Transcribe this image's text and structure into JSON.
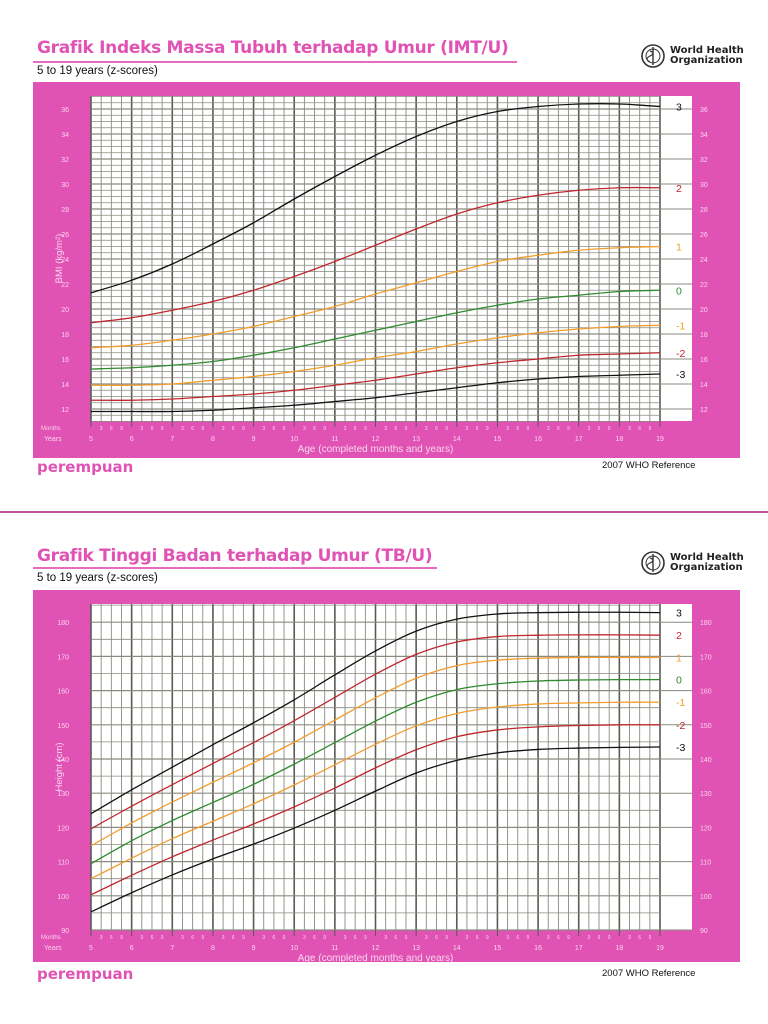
{
  "bmi_chart": {
    "title": "Grafik Indeks Massa Tubuh terhadap Umur (IMT/U)",
    "subtitle": "5 to 19 years (z-scores)",
    "logo_line1": "World Health",
    "logo_line2": "Organization",
    "gender_label": "perempuan",
    "reference": "2007 WHO Reference",
    "ylabel": "BMI (kg/m²)",
    "xlabel": "Age (completed months and years)",
    "months_label": "Months",
    "years_label": "Years"
  },
  "height_chart": {
    "title": "Grafik Tinggi Badan terhadap Umur (TB/U)",
    "subtitle": "5 to 19 years (z-scores)",
    "logo_line1": "World Health",
    "logo_line2": "Organization",
    "gender_label": "perempuan",
    "reference": "2007 WHO Reference",
    "ylabel": "Height (cm)",
    "xlabel": "Age (completed months and years)",
    "months_label": "Months",
    "years_label": "Years"
  },
  "colors": {
    "pink": "#e052b4",
    "z3": "#111111",
    "z2": "#c0272d",
    "z1": "#f39c2a",
    "z0": "#2e8b2e",
    "grid": "#8a8a80",
    "grid_major": "#5a5a52"
  },
  "chart_data": [
    {
      "type": "line",
      "title": "Grafik Indeks Massa Tubuh terhadap Umur (IMT/U)",
      "subtitle": "5 to 19 years (z-scores)",
      "xlabel": "Age (completed months and years)",
      "ylabel": "BMI (kg/m²)",
      "xlim": [
        5,
        19
      ],
      "ylim": [
        11,
        37
      ],
      "x_ticks": [
        5,
        6,
        7,
        8,
        9,
        10,
        11,
        12,
        13,
        14,
        15,
        16,
        17,
        18,
        19
      ],
      "month_ticks": [
        3,
        6,
        9
      ],
      "y_ticks": [
        12,
        14,
        16,
        18,
        20,
        22,
        24,
        26,
        28,
        30,
        32,
        34,
        36
      ],
      "grid": true,
      "legend_position": "right (z-score labels at line ends)",
      "x": [
        5,
        6,
        7,
        8,
        9,
        10,
        11,
        12,
        13,
        14,
        15,
        16,
        17,
        18,
        19
      ],
      "series": [
        {
          "name": "3",
          "color": "#111111",
          "values": [
            21.3,
            22.3,
            23.6,
            25.2,
            26.9,
            28.8,
            30.6,
            32.3,
            33.8,
            35.0,
            35.8,
            36.2,
            36.4,
            36.4,
            36.2
          ]
        },
        {
          "name": "2",
          "color": "#c0272d",
          "values": [
            18.9,
            19.3,
            19.9,
            20.6,
            21.5,
            22.6,
            23.8,
            25.1,
            26.4,
            27.6,
            28.5,
            29.1,
            29.5,
            29.7,
            29.7
          ]
        },
        {
          "name": "1",
          "color": "#f39c2a",
          "values": [
            16.9,
            17.1,
            17.5,
            18.0,
            18.6,
            19.4,
            20.2,
            21.2,
            22.1,
            23.0,
            23.8,
            24.3,
            24.7,
            24.9,
            25.0
          ]
        },
        {
          "name": "0",
          "color": "#2e8b2e",
          "values": [
            15.2,
            15.3,
            15.5,
            15.8,
            16.3,
            16.9,
            17.6,
            18.3,
            19.0,
            19.7,
            20.3,
            20.8,
            21.1,
            21.4,
            21.5
          ]
        },
        {
          "name": "-1",
          "color": "#f39c2a",
          "values": [
            13.9,
            13.9,
            14.0,
            14.3,
            14.6,
            15.0,
            15.5,
            16.1,
            16.6,
            17.2,
            17.7,
            18.1,
            18.4,
            18.6,
            18.7
          ]
        },
        {
          "name": "-2",
          "color": "#c0272d",
          "values": [
            12.7,
            12.7,
            12.8,
            13.0,
            13.2,
            13.5,
            13.9,
            14.3,
            14.8,
            15.3,
            15.7,
            16.0,
            16.3,
            16.4,
            16.5
          ]
        },
        {
          "name": "-3",
          "color": "#111111",
          "values": [
            11.8,
            11.8,
            11.8,
            11.9,
            12.1,
            12.3,
            12.6,
            12.9,
            13.3,
            13.7,
            14.1,
            14.4,
            14.6,
            14.7,
            14.8
          ]
        }
      ]
    },
    {
      "type": "line",
      "title": "Grafik Tinggi Badan terhadap Umur (TB/U)",
      "subtitle": "5 to 19 years (z-scores)",
      "xlabel": "Age (completed months and years)",
      "ylabel": "Height (cm)",
      "xlim": [
        5,
        19
      ],
      "ylim": [
        90,
        185
      ],
      "x_ticks": [
        5,
        6,
        7,
        8,
        9,
        10,
        11,
        12,
        13,
        14,
        15,
        16,
        17,
        18,
        19
      ],
      "month_ticks": [
        3,
        6,
        9
      ],
      "y_ticks": [
        90,
        100,
        110,
        120,
        130,
        140,
        150,
        160,
        170,
        180
      ],
      "grid": true,
      "legend_position": "right (z-score labels at line ends)",
      "x": [
        5,
        6,
        7,
        8,
        9,
        10,
        11,
        12,
        13,
        14,
        15,
        16,
        17,
        18,
        19
      ],
      "series": [
        {
          "name": "3",
          "color": "#111111",
          "values": [
            124.0,
            131.0,
            137.6,
            144.2,
            150.6,
            157.3,
            164.6,
            171.6,
            177.4,
            180.9,
            182.4,
            182.8,
            182.9,
            182.9,
            182.8
          ]
        },
        {
          "name": "2",
          "color": "#c0272d",
          "values": [
            119.6,
            126.2,
            132.5,
            138.7,
            144.8,
            151.2,
            158.0,
            164.8,
            170.6,
            174.2,
            175.8,
            176.2,
            176.3,
            176.3,
            176.2
          ]
        },
        {
          "name": "1",
          "color": "#f39c2a",
          "values": [
            114.6,
            121.3,
            127.4,
            133.2,
            138.9,
            144.9,
            151.4,
            157.9,
            163.6,
            167.3,
            168.9,
            169.5,
            169.7,
            169.7,
            169.7
          ]
        },
        {
          "name": "0",
          "color": "#2e8b2e",
          "values": [
            109.4,
            116.1,
            122.0,
            127.3,
            132.6,
            138.5,
            144.8,
            151.1,
            156.6,
            160.3,
            162.0,
            162.8,
            163.1,
            163.2,
            163.2
          ]
        },
        {
          "name": "-1",
          "color": "#f39c2a",
          "values": [
            105.0,
            111.0,
            116.7,
            121.8,
            126.9,
            132.4,
            138.3,
            144.3,
            149.7,
            153.3,
            155.2,
            156.1,
            156.4,
            156.6,
            156.6
          ]
        },
        {
          "name": "-2",
          "color": "#c0272d",
          "values": [
            100.3,
            106.0,
            111.4,
            116.3,
            121.0,
            126.0,
            131.5,
            137.4,
            142.7,
            146.5,
            148.5,
            149.4,
            149.8,
            150.0,
            150.0
          ]
        },
        {
          "name": "-3",
          "color": "#111111",
          "values": [
            95.3,
            100.9,
            106.1,
            110.8,
            115.1,
            119.8,
            125.0,
            130.6,
            135.9,
            139.6,
            141.8,
            142.8,
            143.2,
            143.4,
            143.5
          ]
        }
      ]
    }
  ]
}
